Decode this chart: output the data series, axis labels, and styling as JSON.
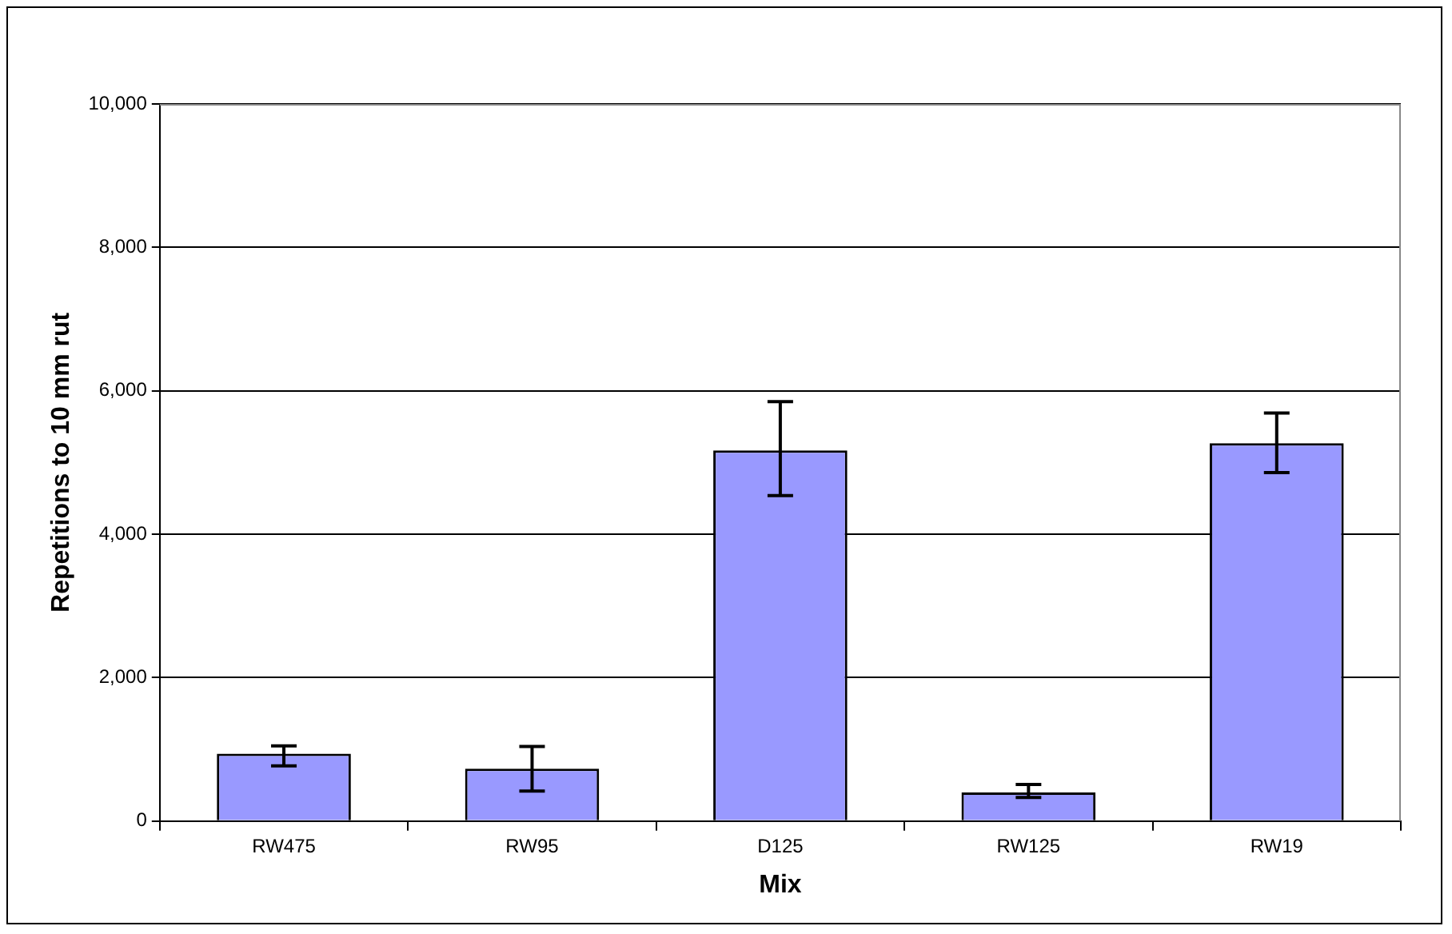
{
  "chart_data": {
    "type": "bar",
    "xlabel": "Mix",
    "ylabel": "Repetitions to 10 mm rut",
    "categories": [
      "RW475",
      "RW95",
      "D125",
      "RW125",
      "RW19"
    ],
    "values": [
      940,
      730,
      5170,
      400,
      5270
    ],
    "errors": [
      [
        770,
        1050
      ],
      [
        420,
        1040
      ],
      [
        4540,
        5850
      ],
      [
        330,
        510
      ],
      [
        4860,
        5690
      ]
    ],
    "color": "#9999ff",
    "ylim": [
      0,
      10000
    ],
    "yticks": [
      {
        "value": 0,
        "label": "0"
      },
      {
        "value": 2000,
        "label": "2,000"
      },
      {
        "value": 4000,
        "label": "4,000"
      },
      {
        "value": 6000,
        "label": "6,000"
      },
      {
        "value": 8000,
        "label": "8,000"
      },
      {
        "value": 10000,
        "label": "10,000"
      }
    ],
    "grid": "y"
  }
}
